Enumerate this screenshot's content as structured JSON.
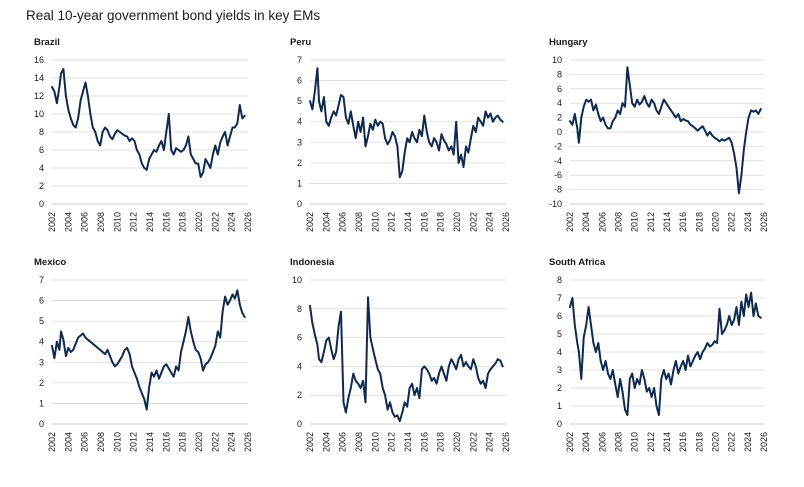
{
  "title": "Real 10-year government bond yields in key EMs",
  "chart_data": [
    {
      "type": "line",
      "title": "Brazil",
      "xlim": [
        2002,
        2026
      ],
      "xticks": [
        "2002",
        "2004",
        "2006",
        "2008",
        "2010",
        "2012",
        "2014",
        "2016",
        "2018",
        "2020",
        "2022",
        "2024",
        "2026"
      ],
      "ylim": [
        0,
        16
      ],
      "yticks": [
        0,
        2,
        4,
        6,
        8,
        10,
        12,
        14,
        16
      ],
      "grid": true,
      "line_color": "#0e2a4f",
      "x": [
        2002.0,
        2002.3,
        2002.6,
        2002.9,
        2003.1,
        2003.4,
        2003.7,
        2004.0,
        2004.3,
        2004.6,
        2004.9,
        2005.2,
        2005.5,
        2005.8,
        2006.1,
        2006.4,
        2006.7,
        2007.0,
        2007.3,
        2007.6,
        2007.9,
        2008.2,
        2008.5,
        2008.8,
        2009.1,
        2009.4,
        2009.7,
        2010.0,
        2010.3,
        2010.6,
        2010.9,
        2011.2,
        2011.5,
        2011.8,
        2012.1,
        2012.4,
        2012.7,
        2013.0,
        2013.3,
        2013.6,
        2013.9,
        2014.2,
        2014.5,
        2014.8,
        2015.1,
        2015.4,
        2015.7,
        2016.0,
        2016.3,
        2016.6,
        2016.9,
        2017.2,
        2017.5,
        2017.8,
        2018.1,
        2018.4,
        2018.7,
        2019.0,
        2019.3,
        2019.6,
        2019.9,
        2020.2,
        2020.5,
        2020.8,
        2021.1,
        2021.4,
        2021.7,
        2022.0,
        2022.3,
        2022.6,
        2022.9,
        2023.2,
        2023.5,
        2023.8,
        2024.1,
        2024.4,
        2024.7,
        2025.0,
        2025.3,
        2025.6
      ],
      "y": [
        13.0,
        12.5,
        11.2,
        13.0,
        14.5,
        15.0,
        12.0,
        10.5,
        9.5,
        8.8,
        8.5,
        9.5,
        11.5,
        12.5,
        13.5,
        12.0,
        10.0,
        8.5,
        8.0,
        7.0,
        6.5,
        8.0,
        8.5,
        8.2,
        7.5,
        7.2,
        7.8,
        8.2,
        8.0,
        7.8,
        7.6,
        7.5,
        7.0,
        7.3,
        7.0,
        6.0,
        5.5,
        4.5,
        4.0,
        3.8,
        5.0,
        5.5,
        6.0,
        5.8,
        6.5,
        7.0,
        6.0,
        8.0,
        10.0,
        6.0,
        5.5,
        6.2,
        6.0,
        5.8,
        6.0,
        6.5,
        7.5,
        5.5,
        5.0,
        4.5,
        4.5,
        3.0,
        3.5,
        5.0,
        4.5,
        4.0,
        5.5,
        6.5,
        5.5,
        6.8,
        7.5,
        8.0,
        6.5,
        7.5,
        8.5,
        8.5,
        9.0,
        11.0,
        9.5,
        9.8
      ]
    },
    {
      "type": "line",
      "title": "Peru",
      "xlim": [
        2002,
        2026
      ],
      "xticks": [
        "2002",
        "2004",
        "2006",
        "2008",
        "2010",
        "2012",
        "2014",
        "2016",
        "2018",
        "2020",
        "2022",
        "2024",
        "2026"
      ],
      "ylim": [
        0,
        7
      ],
      "yticks": [
        0,
        1,
        2,
        3,
        4,
        5,
        6,
        7
      ],
      "grid": true,
      "line_color": "#0e2a4f",
      "x": [
        2002.0,
        2002.3,
        2002.6,
        2002.9,
        2003.1,
        2003.4,
        2003.7,
        2004.0,
        2004.3,
        2004.6,
        2004.9,
        2005.2,
        2005.5,
        2005.8,
        2006.1,
        2006.4,
        2006.7,
        2007.0,
        2007.3,
        2007.6,
        2007.9,
        2008.2,
        2008.5,
        2008.8,
        2009.1,
        2009.4,
        2009.7,
        2010.0,
        2010.3,
        2010.6,
        2010.9,
        2011.2,
        2011.5,
        2011.8,
        2012.1,
        2012.4,
        2012.7,
        2013.0,
        2013.3,
        2013.6,
        2013.9,
        2014.2,
        2014.5,
        2014.8,
        2015.1,
        2015.4,
        2015.7,
        2016.0,
        2016.3,
        2016.6,
        2016.9,
        2017.2,
        2017.5,
        2017.8,
        2018.1,
        2018.4,
        2018.7,
        2019.0,
        2019.3,
        2019.6,
        2019.9,
        2020.2,
        2020.5,
        2020.8,
        2021.1,
        2021.4,
        2021.7,
        2022.0,
        2022.3,
        2022.6,
        2022.9,
        2023.2,
        2023.5,
        2023.8,
        2024.1,
        2024.4,
        2024.7,
        2025.0,
        2025.3,
        2025.6
      ],
      "y": [
        5.0,
        4.6,
        5.5,
        6.6,
        5.0,
        4.5,
        5.2,
        4.0,
        3.8,
        4.2,
        4.5,
        4.3,
        4.8,
        5.3,
        5.2,
        4.2,
        3.9,
        4.5,
        3.8,
        3.2,
        4.0,
        3.5,
        4.2,
        2.8,
        3.3,
        3.9,
        3.6,
        4.1,
        3.8,
        4.0,
        3.9,
        3.2,
        2.9,
        3.1,
        3.5,
        3.3,
        2.8,
        1.3,
        1.6,
        2.5,
        3.2,
        3.0,
        3.5,
        3.2,
        3.0,
        3.6,
        3.3,
        4.3,
        3.5,
        3.0,
        2.8,
        3.2,
        3.0,
        2.6,
        3.4,
        3.1,
        2.9,
        2.6,
        2.8,
        2.4,
        4.0,
        2.0,
        2.4,
        1.8,
        2.8,
        2.5,
        3.2,
        3.8,
        3.5,
        4.2,
        4.0,
        3.8,
        4.5,
        4.2,
        4.4,
        4.0,
        4.2,
        4.3,
        4.1,
        4.0
      ]
    },
    {
      "type": "line",
      "title": "Hungary",
      "xlim": [
        2002,
        2026
      ],
      "xticks": [
        "2002",
        "2004",
        "2006",
        "2008",
        "2010",
        "2012",
        "2014",
        "2016",
        "2018",
        "2020",
        "2022",
        "2024",
        "2026"
      ],
      "ylim": [
        -10,
        10
      ],
      "yticks": [
        -10,
        -8,
        -6,
        -4,
        -2,
        0,
        2,
        4,
        6,
        8,
        10
      ],
      "grid": true,
      "line_color": "#0e2a4f",
      "x": [
        2002.0,
        2002.3,
        2002.6,
        2002.9,
        2003.1,
        2003.4,
        2003.7,
        2004.0,
        2004.3,
        2004.6,
        2004.9,
        2005.2,
        2005.5,
        2005.8,
        2006.1,
        2006.4,
        2006.7,
        2007.0,
        2007.3,
        2007.6,
        2007.9,
        2008.2,
        2008.5,
        2008.8,
        2009.1,
        2009.4,
        2009.7,
        2010.0,
        2010.3,
        2010.6,
        2010.9,
        2011.2,
        2011.5,
        2011.8,
        2012.1,
        2012.4,
        2012.7,
        2013.0,
        2013.3,
        2013.6,
        2013.9,
        2014.2,
        2014.5,
        2014.8,
        2015.1,
        2015.4,
        2015.7,
        2016.0,
        2016.3,
        2016.6,
        2016.9,
        2017.2,
        2017.5,
        2017.8,
        2018.1,
        2018.4,
        2018.7,
        2019.0,
        2019.3,
        2019.6,
        2019.9,
        2020.2,
        2020.5,
        2020.8,
        2021.1,
        2021.4,
        2021.7,
        2022.0,
        2022.3,
        2022.6,
        2022.9,
        2023.2,
        2023.5,
        2023.8,
        2024.1,
        2024.4,
        2024.7,
        2025.0,
        2025.3,
        2025.6
      ],
      "y": [
        1.5,
        1.0,
        2.5,
        0.5,
        -1.5,
        2.0,
        3.5,
        4.5,
        4.2,
        4.5,
        3.0,
        3.8,
        2.5,
        1.5,
        2.0,
        1.0,
        0.5,
        0.5,
        1.5,
        2.0,
        3.0,
        2.5,
        4.0,
        3.5,
        9.0,
        6.5,
        4.0,
        3.5,
        4.5,
        3.8,
        4.2,
        5.0,
        4.0,
        3.5,
        4.5,
        4.0,
        3.0,
        2.5,
        3.5,
        4.5,
        4.0,
        3.5,
        3.0,
        2.5,
        2.0,
        2.5,
        1.5,
        1.8,
        1.6,
        1.5,
        1.0,
        0.8,
        0.5,
        0.2,
        0.5,
        0.8,
        0.2,
        -0.5,
        0.0,
        -0.5,
        -0.8,
        -1.0,
        -1.3,
        -1.0,
        -1.2,
        -1.0,
        -0.8,
        -1.5,
        -3.0,
        -5.0,
        -8.5,
        -6.0,
        -2.5,
        0.0,
        2.0,
        3.0,
        2.8,
        3.0,
        2.5,
        3.2
      ]
    },
    {
      "type": "line",
      "title": "Mexico",
      "xlim": [
        2002,
        2026
      ],
      "xticks": [
        "2002",
        "2004",
        "2006",
        "2008",
        "2010",
        "2012",
        "2014",
        "2016",
        "2018",
        "2020",
        "2022",
        "2024",
        "2026"
      ],
      "ylim": [
        0,
        7
      ],
      "yticks": [
        0,
        1,
        2,
        3,
        4,
        5,
        6,
        7
      ],
      "grid": true,
      "line_color": "#0e2a4f",
      "x": [
        2002.0,
        2002.3,
        2002.6,
        2002.9,
        2003.1,
        2003.4,
        2003.7,
        2004.0,
        2004.3,
        2004.6,
        2004.9,
        2005.2,
        2005.5,
        2005.8,
        2006.1,
        2006.4,
        2006.7,
        2007.0,
        2007.3,
        2007.6,
        2007.9,
        2008.2,
        2008.5,
        2008.8,
        2009.1,
        2009.4,
        2009.7,
        2010.0,
        2010.3,
        2010.6,
        2010.9,
        2011.2,
        2011.5,
        2011.8,
        2012.1,
        2012.4,
        2012.7,
        2013.0,
        2013.3,
        2013.6,
        2013.9,
        2014.2,
        2014.5,
        2014.8,
        2015.1,
        2015.4,
        2015.7,
        2016.0,
        2016.3,
        2016.6,
        2016.9,
        2017.2,
        2017.5,
        2017.8,
        2018.1,
        2018.4,
        2018.7,
        2019.0,
        2019.3,
        2019.6,
        2019.9,
        2020.2,
        2020.5,
        2020.8,
        2021.1,
        2021.4,
        2021.7,
        2022.0,
        2022.3,
        2022.6,
        2022.9,
        2023.2,
        2023.5,
        2023.8,
        2024.1,
        2024.4,
        2024.7,
        2025.0,
        2025.3,
        2025.6
      ],
      "y": [
        3.8,
        3.2,
        4.0,
        3.6,
        4.5,
        4.1,
        3.3,
        3.7,
        3.5,
        3.6,
        3.9,
        4.2,
        4.3,
        4.4,
        4.2,
        4.1,
        4.0,
        3.9,
        3.8,
        3.7,
        3.6,
        3.5,
        3.4,
        3.6,
        3.3,
        3.0,
        2.8,
        2.9,
        3.1,
        3.3,
        3.6,
        3.7,
        3.4,
        2.8,
        2.5,
        2.2,
        1.8,
        1.5,
        1.2,
        0.7,
        1.8,
        2.5,
        2.3,
        2.6,
        2.2,
        2.5,
        2.8,
        2.9,
        2.7,
        2.5,
        2.3,
        2.8,
        2.6,
        3.5,
        4.0,
        4.5,
        5.2,
        4.5,
        4.0,
        3.6,
        3.5,
        3.2,
        2.6,
        2.9,
        3.0,
        3.2,
        3.5,
        3.8,
        4.5,
        4.2,
        5.5,
        6.2,
        5.8,
        6.0,
        6.3,
        6.1,
        6.5,
        5.8,
        5.4,
        5.2
      ]
    },
    {
      "type": "line",
      "title": "Indonesia",
      "xlim": [
        2002,
        2026
      ],
      "xticks": [
        "2002",
        "2004",
        "2006",
        "2008",
        "2010",
        "2012",
        "2014",
        "2016",
        "2018",
        "2020",
        "2022",
        "2024",
        "2026"
      ],
      "ylim": [
        0,
        10
      ],
      "yticks": [
        0,
        2,
        4,
        6,
        8,
        10
      ],
      "grid": true,
      "line_color": "#0e2a4f",
      "x": [
        2002.0,
        2002.3,
        2002.6,
        2002.9,
        2003.1,
        2003.4,
        2003.7,
        2004.0,
        2004.3,
        2004.6,
        2004.9,
        2005.2,
        2005.5,
        2005.8,
        2006.1,
        2006.4,
        2006.7,
        2007.0,
        2007.3,
        2007.6,
        2007.9,
        2008.2,
        2008.5,
        2008.8,
        2009.1,
        2009.4,
        2009.7,
        2010.0,
        2010.3,
        2010.6,
        2010.9,
        2011.2,
        2011.5,
        2011.8,
        2012.1,
        2012.4,
        2012.7,
        2013.0,
        2013.3,
        2013.6,
        2013.9,
        2014.2,
        2014.5,
        2014.8,
        2015.1,
        2015.4,
        2015.7,
        2016.0,
        2016.3,
        2016.6,
        2016.9,
        2017.2,
        2017.5,
        2017.8,
        2018.1,
        2018.4,
        2018.7,
        2019.0,
        2019.3,
        2019.6,
        2019.9,
        2020.2,
        2020.5,
        2020.8,
        2021.1,
        2021.4,
        2021.7,
        2022.0,
        2022.3,
        2022.6,
        2022.9,
        2023.2,
        2023.5,
        2023.8,
        2024.1,
        2024.4,
        2024.7,
        2025.0,
        2025.3,
        2025.6
      ],
      "y": [
        8.2,
        7.0,
        6.2,
        5.5,
        4.5,
        4.3,
        5.0,
        5.8,
        6.0,
        5.2,
        4.5,
        5.0,
        6.8,
        7.8,
        1.5,
        0.8,
        1.8,
        2.5,
        3.5,
        3.0,
        2.8,
        2.5,
        3.0,
        1.5,
        8.8,
        6.0,
        5.2,
        4.5,
        3.8,
        3.5,
        2.5,
        2.0,
        1.0,
        1.5,
        0.8,
        0.5,
        0.6,
        0.2,
        0.8,
        1.5,
        1.2,
        2.5,
        2.8,
        2.0,
        2.5,
        1.8,
        3.8,
        4.0,
        3.8,
        3.5,
        3.0,
        3.2,
        2.8,
        3.5,
        4.0,
        3.5,
        3.0,
        4.0,
        4.5,
        4.2,
        3.8,
        4.5,
        4.8,
        4.0,
        4.3,
        4.0,
        3.8,
        4.5,
        4.0,
        3.2,
        2.8,
        3.0,
        2.5,
        3.5,
        3.8,
        4.0,
        4.2,
        4.5,
        4.4,
        4.0
      ]
    },
    {
      "type": "line",
      "title": "South Africa",
      "xlim": [
        2002,
        2026
      ],
      "xticks": [
        "2002",
        "2004",
        "2006",
        "2008",
        "2010",
        "2012",
        "2014",
        "2016",
        "2018",
        "2020",
        "2022",
        "2024",
        "2026"
      ],
      "ylim": [
        0,
        8
      ],
      "yticks": [
        0,
        1,
        2,
        3,
        4,
        5,
        6,
        7,
        8
      ],
      "grid": true,
      "line_color": "#0e2a4f",
      "x": [
        2002.0,
        2002.3,
        2002.6,
        2002.9,
        2003.1,
        2003.4,
        2003.7,
        2004.0,
        2004.3,
        2004.6,
        2004.9,
        2005.2,
        2005.5,
        2005.8,
        2006.1,
        2006.4,
        2006.7,
        2007.0,
        2007.3,
        2007.6,
        2007.9,
        2008.2,
        2008.5,
        2008.8,
        2009.1,
        2009.4,
        2009.7,
        2010.0,
        2010.3,
        2010.6,
        2010.9,
        2011.2,
        2011.5,
        2011.8,
        2012.1,
        2012.4,
        2012.7,
        2013.0,
        2013.3,
        2013.6,
        2013.9,
        2014.2,
        2014.5,
        2014.8,
        2015.1,
        2015.4,
        2015.7,
        2016.0,
        2016.3,
        2016.6,
        2016.9,
        2017.2,
        2017.5,
        2017.8,
        2018.1,
        2018.4,
        2018.7,
        2019.0,
        2019.3,
        2019.6,
        2019.9,
        2020.2,
        2020.5,
        2020.8,
        2021.1,
        2021.4,
        2021.7,
        2022.0,
        2022.3,
        2022.6,
        2022.9,
        2023.2,
        2023.5,
        2023.8,
        2024.1,
        2024.4,
        2024.7,
        2025.0,
        2025.3,
        2025.6
      ],
      "y": [
        6.5,
        7.0,
        5.5,
        4.5,
        4.0,
        2.5,
        4.8,
        5.5,
        6.5,
        5.5,
        4.5,
        4.0,
        4.5,
        3.5,
        3.0,
        3.5,
        2.8,
        2.5,
        3.0,
        2.2,
        1.5,
        2.5,
        1.8,
        0.8,
        0.5,
        2.5,
        2.8,
        2.0,
        2.5,
        2.2,
        3.0,
        2.5,
        1.8,
        2.0,
        1.5,
        2.0,
        1.0,
        0.5,
        2.5,
        3.0,
        2.5,
        2.8,
        2.2,
        3.0,
        3.5,
        2.8,
        3.2,
        3.5,
        3.0,
        3.8,
        3.2,
        3.5,
        3.8,
        4.0,
        3.6,
        4.0,
        4.2,
        4.5,
        4.3,
        4.4,
        4.6,
        4.5,
        6.4,
        5.0,
        5.2,
        5.5,
        6.0,
        5.5,
        5.8,
        6.5,
        5.5,
        6.8,
        6.0,
        7.2,
        6.5,
        7.3,
        6.0,
        6.7,
        6.0,
        5.9
      ]
    }
  ]
}
